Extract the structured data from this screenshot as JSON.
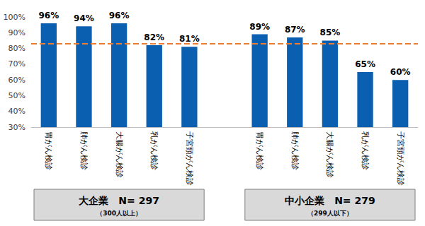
{
  "chart_data": {
    "type": "bar",
    "categories": [
      "胃がん検診",
      "肺がん検診",
      "大腸がん検診",
      "乳がん検診",
      "子宮頸がん検診",
      null,
      "胃がん検診",
      "肺がん検診",
      "大腸がん検診",
      "乳がん検診",
      "子宮頸がん検診"
    ],
    "values": [
      96,
      94,
      96,
      82,
      81,
      null,
      89,
      87,
      85,
      65,
      60
    ],
    "value_labels": [
      "96%",
      "94%",
      "96%",
      "82%",
      "81%",
      null,
      "89%",
      "87%",
      "85%",
      "65%",
      "60%"
    ],
    "color": "#0b5fb0",
    "ylim": [
      30,
      100
    ],
    "yticks": [
      {
        "value": 30,
        "label": "30%"
      },
      {
        "value": 40,
        "label": "40%"
      },
      {
        "value": 50,
        "label": "50%"
      },
      {
        "value": 60,
        "label": "60%"
      },
      {
        "value": 70,
        "label": "70%"
      },
      {
        "value": 80,
        "label": "80%"
      },
      {
        "value": 90,
        "label": "90%"
      },
      {
        "value": 100,
        "label": "100%"
      }
    ],
    "grid": false,
    "data_labels": true,
    "reference_line": {
      "value": 83,
      "color": "#ed7d31",
      "line_style": "dashed"
    },
    "groups": [
      {
        "label": "大企業　N= 297",
        "sublabel": "（300人以上）"
      },
      {
        "label": "中小企業　N= 279",
        "sublabel": "（299人以下）"
      }
    ]
  }
}
